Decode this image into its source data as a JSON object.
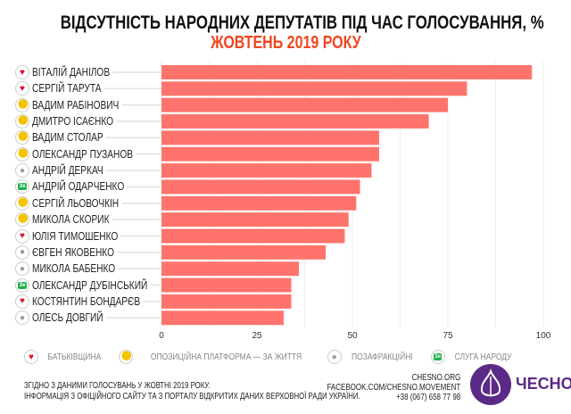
{
  "chart_data": {
    "type": "bar",
    "orientation": "horizontal",
    "title": "ВІДСУТНІСТЬ НАРОДНИХ ДЕПУТАТІВ ПІД ЧАС ГОЛОСУВАННЯ, %",
    "subtitle": "ЖОВТЕНЬ 2019 РОКУ",
    "categories": [
      "ВІТАЛІЙ ДАНІЛОВ",
      "СЕРГІЙ ТАРУТА",
      "ВАДИМ РАБІНОВИЧ",
      "ДМИТРО ІСАЄНКО",
      "ВАДИМ СТОЛАР",
      "ОЛЕКСАНДР ПУЗАНОВ",
      "АНДРІЙ ДЕРКАЧ",
      "АНДРІЙ ОДАРЧЕНКО",
      "СЕРГІЙ ЛЬОВОЧКІН",
      "МИКОЛА СКОРИК",
      "ЮЛІЯ ТИМОШЕНКО",
      "ЄВГЕН ЯКОВЕНКО",
      "МИКОЛА БАБЕНКО",
      "ОЛЕКСАНДР ДУБІНСЬКИЙ",
      "КОСТЯНТИН БОНДАРЄВ",
      "ОЛЕСЬ ДОВГИЙ"
    ],
    "parties": [
      "batkivshchyna",
      "batkivshchyna",
      "opposition",
      "opposition",
      "opposition",
      "opposition",
      "independent",
      "servant",
      "opposition",
      "opposition",
      "batkivshchyna",
      "independent",
      "independent",
      "servant",
      "batkivshchyna",
      "independent"
    ],
    "values": [
      97,
      80,
      75,
      70,
      57,
      57,
      55,
      52,
      51,
      49,
      48,
      43,
      36,
      34,
      34,
      32
    ],
    "xlim": [
      0,
      100
    ],
    "xticks": [
      "0",
      "25",
      "50",
      "75",
      "100"
    ],
    "bar_color": "#fe746c",
    "grid": true
  },
  "legend": [
    {
      "party": "batkivshchyna",
      "label": "БАТЬКІВЩИНА"
    },
    {
      "party": "opposition",
      "label": "ОПОЗИЦІЙНА ПЛАТФОРМА — ЗА ЖИТТЯ"
    },
    {
      "party": "independent",
      "label": "ПОЗАФРАКЦІЙНІ"
    },
    {
      "party": "servant",
      "label": "СЛУГА НАРОДУ"
    }
  ],
  "servant_badge": "Зе",
  "footer": {
    "note1": "ЗГІДНО З ДАНИМИ ГОЛОСУВАНЬ У ЖОВТНІ 2019 РОКУ.",
    "note2": "ІНФОРМАЦІЯ З ОФІЦІЙНОГО САЙТУ ТА З ПОРТАЛУ ВІДКРИТИХ ДАНИХ ВЕРХОВНОЇ РАДИ УКРАЇНИ.",
    "site": "CHESNO.ORG",
    "facebook": "FACEBOOK.COM/CHESNO.MOVEMENT",
    "phone": "+38 (067) 658 77 98",
    "logo": "ЧЕСНО"
  }
}
